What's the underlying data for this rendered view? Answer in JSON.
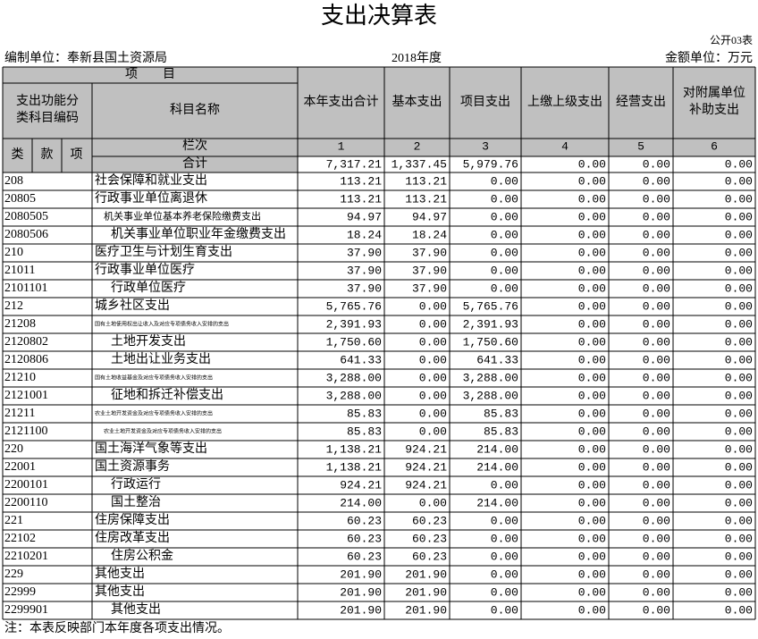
{
  "title": "支出决算表",
  "form_no": "公开03表",
  "unit": "编制单位：奉新县国土资源局",
  "year": "2018年度",
  "amount_unit": "金额单位：万元",
  "header": {
    "item": "项　　目",
    "code_label": [
      "支出功能分",
      "类科目编码"
    ],
    "name_label": "科目名称",
    "columns": [
      [
        "本年支出合计"
      ],
      [
        "基本支出"
      ],
      [
        "项目支出"
      ],
      [
        "上缴上级支出"
      ],
      [
        "经营支出"
      ],
      [
        "对附属单位",
        "补助支出"
      ]
    ],
    "levels": [
      "类",
      "款",
      "项"
    ],
    "index_label": "栏次",
    "index": [
      "1",
      "2",
      "3",
      "4",
      "5",
      "6"
    ],
    "total_label": "合计",
    "total": [
      "7,317.21",
      "1,337.45",
      "5,979.76",
      "0.00",
      "0.00",
      "0.00"
    ]
  },
  "table": {
    "rows": [
      [
        "208",
        "社会保障和就业支出",
        "113.21",
        "113.21",
        "0.00",
        "0.00",
        "0.00",
        "0.00"
      ],
      [
        "20805",
        "行政事业单位离退休",
        "113.21",
        "113.21",
        "0.00",
        "0.00",
        "0.00",
        "0.00"
      ],
      [
        "2080505",
        "机关事业单位基本养老保险缴费支出",
        "94.97",
        "94.97",
        "0.00",
        "0.00",
        "0.00",
        "0.00"
      ],
      [
        "2080506",
        "机关事业单位职业年金缴费支出",
        "18.24",
        "18.24",
        "0.00",
        "0.00",
        "0.00",
        "0.00"
      ],
      [
        "210",
        "医疗卫生与计划生育支出",
        "37.90",
        "37.90",
        "0.00",
        "0.00",
        "0.00",
        "0.00"
      ],
      [
        "21011",
        "行政事业单位医疗",
        "37.90",
        "37.90",
        "0.00",
        "0.00",
        "0.00",
        "0.00"
      ],
      [
        "2101101",
        "行政单位医疗",
        "37.90",
        "37.90",
        "0.00",
        "0.00",
        "0.00",
        "0.00"
      ],
      [
        "212",
        "城乡社区支出",
        "5,765.76",
        "0.00",
        "5,765.76",
        "0.00",
        "0.00",
        "0.00"
      ],
      [
        "21208",
        "国有土地使用权出让收入及对应专项债务收入安排的支出",
        "2,391.93",
        "0.00",
        "2,391.93",
        "0.00",
        "0.00",
        "0.00"
      ],
      [
        "2120802",
        "土地开发支出",
        "1,750.60",
        "0.00",
        "1,750.60",
        "0.00",
        "0.00",
        "0.00"
      ],
      [
        "2120806",
        "土地出让业务支出",
        "641.33",
        "0.00",
        "641.33",
        "0.00",
        "0.00",
        "0.00"
      ],
      [
        "21210",
        "国有土地收益基金及对应专项债务收入安排的支出",
        "3,288.00",
        "0.00",
        "3,288.00",
        "0.00",
        "0.00",
        "0.00"
      ],
      [
        "2121001",
        "征地和拆迁补偿支出",
        "3,288.00",
        "0.00",
        "3,288.00",
        "0.00",
        "0.00",
        "0.00"
      ],
      [
        "21211",
        "农业土地开发资金及对应专项债务收入安排的支出",
        "85.83",
        "0.00",
        "85.83",
        "0.00",
        "0.00",
        "0.00"
      ],
      [
        "2121100",
        "农业土地开发资金及对应专项债务收入安排的支出",
        "85.83",
        "0.00",
        "85.83",
        "0.00",
        "0.00",
        "0.00"
      ],
      [
        "220",
        "国土海洋气象等支出",
        "1,138.21",
        "924.21",
        "214.00",
        "0.00",
        "0.00",
        "0.00"
      ],
      [
        "22001",
        "国土资源事务",
        "1,138.21",
        "924.21",
        "214.00",
        "0.00",
        "0.00",
        "0.00"
      ],
      [
        "2200101",
        "行政运行",
        "924.21",
        "924.21",
        "0.00",
        "0.00",
        "0.00",
        "0.00"
      ],
      [
        "2200110",
        "国土整治",
        "214.00",
        "0.00",
        "214.00",
        "0.00",
        "0.00",
        "0.00"
      ],
      [
        "221",
        "住房保障支出",
        "60.23",
        "60.23",
        "0.00",
        "0.00",
        "0.00",
        "0.00"
      ],
      [
        "22102",
        "住房改革支出",
        "60.23",
        "60.23",
        "0.00",
        "0.00",
        "0.00",
        "0.00"
      ],
      [
        "2210201",
        "住房公积金",
        "60.23",
        "60.23",
        "0.00",
        "0.00",
        "0.00",
        "0.00"
      ],
      [
        "229",
        "其他支出",
        "201.90",
        "201.90",
        "0.00",
        "0.00",
        "0.00",
        "0.00"
      ],
      [
        "22999",
        "其他支出",
        "201.90",
        "201.90",
        "0.00",
        "0.00",
        "0.00",
        "0.00"
      ],
      [
        "2299901",
        "其他支出",
        "201.90",
        "201.90",
        "0.00",
        "0.00",
        "0.00",
        "0.00"
      ]
    ]
  },
  "note": "注：本表反映部门本年度各项支出情况。"
}
